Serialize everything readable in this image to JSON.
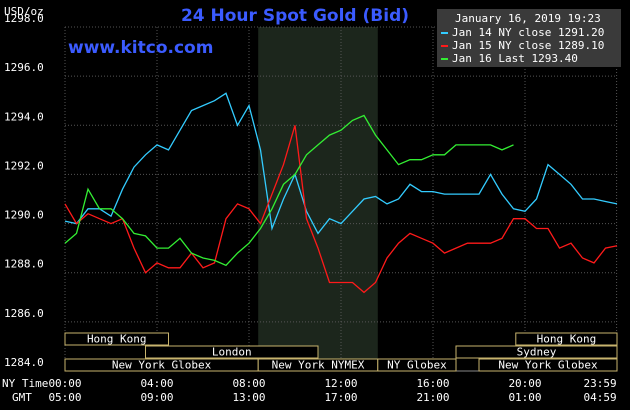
{
  "chart_data": {
    "type": "line",
    "title": "24 Hour Spot Gold (Bid)",
    "watermark": "www.kitco.com",
    "y_label": "USD/oz",
    "timestamp": "January 16, 2019 19:23",
    "x_label_ny": "NY Time",
    "x_label_gmt": "GMT",
    "xlim": [
      0,
      24
    ],
    "xticks": [
      {
        "value": 0,
        "label": "00:00"
      },
      {
        "value": 4,
        "label": "04:00"
      },
      {
        "value": 8,
        "label": "08:00"
      },
      {
        "value": 12,
        "label": "12:00"
      },
      {
        "value": 16,
        "label": "16:00"
      },
      {
        "value": 20,
        "label": "20:00"
      },
      {
        "value": 23.983,
        "label": "23:59"
      }
    ],
    "xticks_gmt": [
      "05:00",
      "09:00",
      "13:00",
      "17:00",
      "21:00",
      "01:00",
      "04:59"
    ],
    "ylim": [
      1284,
      1298
    ],
    "yticks": [
      {
        "value": 1284,
        "label": "1284.0"
      },
      {
        "value": 1286,
        "label": "1286.0"
      },
      {
        "value": 1288,
        "label": "1288.0"
      },
      {
        "value": 1290,
        "label": "1290.0"
      },
      {
        "value": 1292,
        "label": "1292.0"
      },
      {
        "value": 1294,
        "label": "1294.0"
      },
      {
        "value": 1296,
        "label": "1296.0"
      },
      {
        "value": 1298,
        "label": "1298.0"
      }
    ],
    "grid": true,
    "highlight_x": [
      8.4,
      13.6
    ],
    "x": [
      0,
      0.5,
      1,
      1.5,
      2,
      2.5,
      3,
      3.5,
      4,
      4.5,
      5,
      5.5,
      6,
      6.5,
      7,
      7.5,
      8,
      8.5,
      9,
      9.5,
      10,
      10.5,
      11,
      11.5,
      12,
      12.5,
      13,
      13.5,
      14,
      14.5,
      15,
      15.5,
      16,
      16.5,
      17,
      17.5,
      18,
      18.5,
      19,
      19.5,
      20,
      20.5,
      21,
      21.5,
      22,
      22.5,
      23,
      23.5,
      24
    ],
    "series": [
      {
        "name": "Jan 14 NY close 1291.20",
        "color": "#33ccff",
        "values": [
          1290.1,
          1290.0,
          1290.6,
          1290.6,
          1290.3,
          1291.4,
          1292.3,
          1292.8,
          1293.2,
          1293.0,
          1293.8,
          1294.6,
          1294.8,
          1295.0,
          1295.3,
          1294.0,
          1294.8,
          1293.0,
          1289.8,
          1291.0,
          1292.0,
          1290.5,
          1289.6,
          1290.2,
          1290.0,
          1290.5,
          1291.0,
          1291.1,
          1290.8,
          1291.0,
          1291.6,
          1291.3,
          1291.3,
          1291.2,
          1291.2,
          1291.2,
          1291.2,
          1292.0,
          1291.2,
          1290.6,
          1290.5,
          1291.0,
          1292.4,
          1292.0,
          1291.6,
          1291.0,
          1291.0,
          1290.9,
          1290.8
        ]
      },
      {
        "name": "Jan 15 NY close 1289.10",
        "color": "#ff1a1a",
        "values": [
          1290.8,
          1290.0,
          1290.4,
          1290.2,
          1290.0,
          1290.2,
          1289.0,
          1288.0,
          1288.4,
          1288.2,
          1288.2,
          1288.8,
          1288.2,
          1288.4,
          1290.2,
          1290.8,
          1290.6,
          1290.0,
          1291.2,
          1292.4,
          1294.0,
          1290.2,
          1289.0,
          1287.6,
          1287.6,
          1287.6,
          1287.2,
          1287.6,
          1288.6,
          1289.2,
          1289.6,
          1289.4,
          1289.2,
          1288.8,
          1289.0,
          1289.2,
          1289.2,
          1289.2,
          1289.4,
          1290.2,
          1290.2,
          1289.8,
          1289.8,
          1289.0,
          1289.2,
          1288.6,
          1288.4,
          1289.0,
          1289.1
        ]
      },
      {
        "name": "Jan 16 Last 1293.40",
        "color": "#33ee33",
        "values": [
          1289.2,
          1289.6,
          1291.4,
          1290.6,
          1290.6,
          1290.2,
          1289.6,
          1289.5,
          1289.0,
          1289.0,
          1289.4,
          1288.8,
          1288.6,
          1288.5,
          1288.3,
          1288.8,
          1289.2,
          1289.8,
          1290.6,
          1291.6,
          1292.0,
          1292.8,
          1293.2,
          1293.6,
          1293.8,
          1294.2,
          1294.4,
          1293.6,
          1293.0,
          1292.4,
          1292.6,
          1292.6,
          1292.8,
          1292.8,
          1293.2,
          1293.2,
          1293.2,
          1293.2,
          1293.0,
          1293.2,
          null,
          null,
          null,
          null,
          null,
          null,
          null,
          null,
          null
        ]
      }
    ],
    "sessions": [
      {
        "name": "Hong Kong",
        "start": 0,
        "end": 4.5,
        "row": 0
      },
      {
        "name": "Hong Kong",
        "start": 19.6,
        "end": 24,
        "row": 0
      },
      {
        "name": "London",
        "start": 3.5,
        "end": 11,
        "row": 1
      },
      {
        "name": "Sydney",
        "start": 17,
        "end": 24,
        "row": 1
      },
      {
        "name": "New York Globex",
        "start": 0,
        "end": 8.4,
        "row": 2
      },
      {
        "name": "New York NYMEX",
        "start": 8.4,
        "end": 13.6,
        "row": 2
      },
      {
        "name": "NY Globex",
        "start": 13.6,
        "end": 17,
        "row": 2
      },
      {
        "name": "New York Globex",
        "start": 18,
        "end": 24,
        "row": 2
      }
    ]
  }
}
